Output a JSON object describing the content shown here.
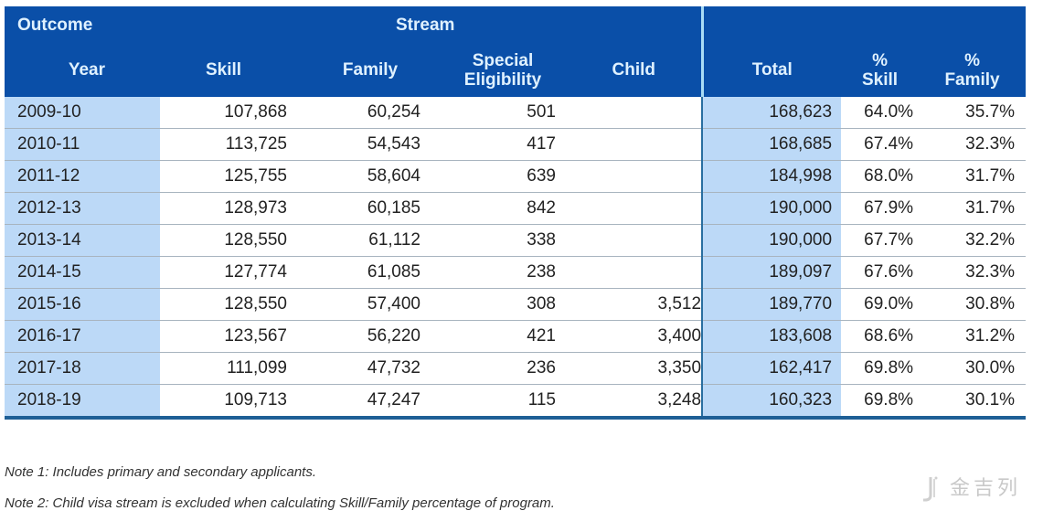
{
  "table": {
    "header_row1": {
      "outcome": "Outcome",
      "stream": "Stream"
    },
    "columns": {
      "year": "Year",
      "skill": "Skill",
      "family": "Family",
      "special_line1": "Special",
      "special_line2": "Eligibility",
      "child": "Child",
      "total": "Total",
      "pct_skill_line1": "%",
      "pct_skill_line2": "Skill",
      "pct_family_line1": "%",
      "pct_family_line2": "Family"
    },
    "rows": [
      {
        "year": "2009-10",
        "skill": "107,868",
        "family": "60,254",
        "special": "501",
        "child": "",
        "total": "168,623",
        "pct_skill": "64.0%",
        "pct_family": "35.7%"
      },
      {
        "year": "2010-11",
        "skill": "113,725",
        "family": "54,543",
        "special": "417",
        "child": "",
        "total": "168,685",
        "pct_skill": "67.4%",
        "pct_family": "32.3%"
      },
      {
        "year": "2011-12",
        "skill": "125,755",
        "family": "58,604",
        "special": "639",
        "child": "",
        "total": "184,998",
        "pct_skill": "68.0%",
        "pct_family": "31.7%"
      },
      {
        "year": "2012-13",
        "skill": "128,973",
        "family": "60,185",
        "special": "842",
        "child": "",
        "total": "190,000",
        "pct_skill": "67.9%",
        "pct_family": "31.7%"
      },
      {
        "year": "2013-14",
        "skill": "128,550",
        "family": "61,112",
        "special": "338",
        "child": "",
        "total": "190,000",
        "pct_skill": "67.7%",
        "pct_family": "32.2%"
      },
      {
        "year": "2014-15",
        "skill": "127,774",
        "family": "61,085",
        "special": "238",
        "child": "",
        "total": "189,097",
        "pct_skill": "67.6%",
        "pct_family": "32.3%"
      },
      {
        "year": "2015-16",
        "skill": "128,550",
        "family": "57,400",
        "special": "308",
        "child": "3,512",
        "total": "189,770",
        "pct_skill": "69.0%",
        "pct_family": "30.8%"
      },
      {
        "year": "2016-17",
        "skill": "123,567",
        "family": "56,220",
        "special": "421",
        "child": "3,400",
        "total": "183,608",
        "pct_skill": "68.6%",
        "pct_family": "31.2%"
      },
      {
        "year": "2017-18",
        "skill": "111,099",
        "family": "47,732",
        "special": "236",
        "child": "3,350",
        "total": "162,417",
        "pct_skill": "69.8%",
        "pct_family": "30.0%"
      },
      {
        "year": "2018-19",
        "skill": "109,713",
        "family": "47,247",
        "special": "115",
        "child": "3,248",
        "total": "160,323",
        "pct_skill": "69.8%",
        "pct_family": "30.1%"
      }
    ]
  },
  "notes": [
    "Note 1: Includes primary and secondary applicants.",
    "Note 2: Child visa stream is excluded when calculating Skill/Family percentage of program."
  ],
  "watermark": {
    "text": "金吉列"
  },
  "colors": {
    "header_bg": "#0a4fa8",
    "header_text": "#dff1ff",
    "highlight_col_bg": "#bcd9f7",
    "bottom_border": "#1e5f96"
  }
}
